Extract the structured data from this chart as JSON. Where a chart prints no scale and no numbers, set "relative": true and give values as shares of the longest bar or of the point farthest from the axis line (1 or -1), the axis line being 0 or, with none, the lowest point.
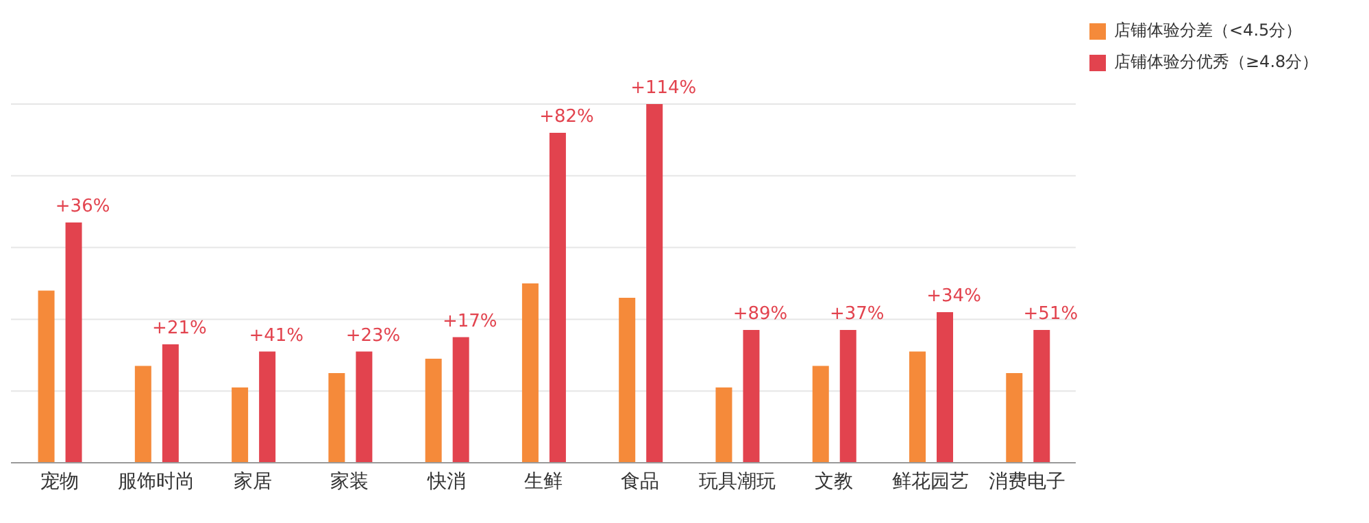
{
  "chart_data": {
    "type": "bar",
    "relative": true,
    "categories": [
      "宠物",
      "服饰时尚",
      "家居",
      "家装",
      "快消",
      "生鲜",
      "食品",
      "玩具潮玩",
      "文教",
      "鲜花园艺",
      "消费电子"
    ],
    "series": [
      {
        "name": "店铺体验分差（<4.5分）",
        "color": "#f58a3a",
        "values": [
          0.48,
          0.27,
          0.21,
          0.25,
          0.29,
          0.5,
          0.46,
          0.21,
          0.27,
          0.31,
          0.25
        ]
      },
      {
        "name": "店铺体验分优秀（≥4.8分）",
        "color": "#e2434e",
        "values": [
          0.67,
          0.33,
          0.31,
          0.31,
          0.35,
          0.92,
          1,
          0.37,
          0.37,
          0.42,
          0.37
        ]
      }
    ],
    "annotations": [
      {
        "text": "+36%",
        "x": "宠物",
        "y": 0.67
      },
      {
        "text": "+21%",
        "x": "服饰时尚",
        "y": 0.33
      },
      {
        "text": "+41%",
        "x": "家居",
        "y": 0.31
      },
      {
        "text": "+23%",
        "x": "家装",
        "y": 0.31
      },
      {
        "text": "+17%",
        "x": "快消",
        "y": 0.35
      },
      {
        "text": "+82%",
        "x": "生鲜",
        "y": 0.92
      },
      {
        "text": "+114%",
        "x": "食品",
        "y": 1
      },
      {
        "text": "+89%",
        "x": "玩具潮玩",
        "y": 0.37
      },
      {
        "text": "+37%",
        "x": "文教",
        "y": 0.37
      },
      {
        "text": "+34%",
        "x": "鲜花园艺",
        "y": 0.42
      },
      {
        "text": "+51%",
        "x": "消费电子",
        "y": 0.37
      }
    ],
    "grid": "y",
    "legend": "top right"
  }
}
